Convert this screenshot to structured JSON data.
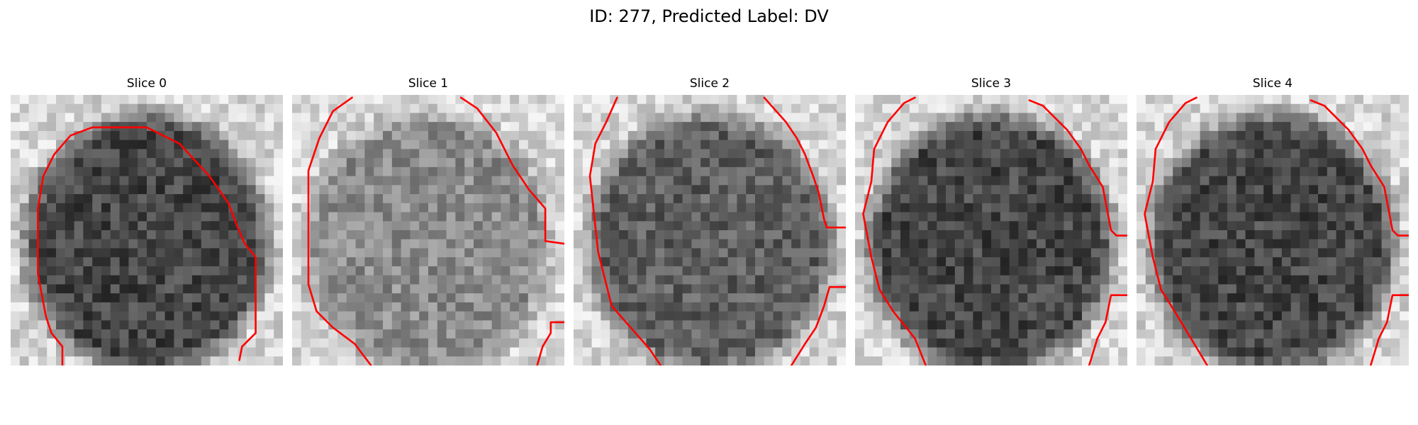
{
  "figure": {
    "title": "ID: 277, Predicted Label: DV"
  },
  "colors": {
    "contour": "#ff0000",
    "background": "#ffffff"
  },
  "slices": [
    {
      "title": "Slice 0",
      "lesion_brightness": "dark",
      "contour": [
        [
          [
            0.19,
            1.0
          ],
          [
            0.19,
            0.93
          ],
          [
            0.15,
            0.88
          ],
          [
            0.13,
            0.82
          ],
          [
            0.1,
            0.66
          ],
          [
            0.1,
            0.42
          ],
          [
            0.12,
            0.3
          ],
          [
            0.16,
            0.22
          ],
          [
            0.22,
            0.15
          ],
          [
            0.3,
            0.12
          ],
          [
            0.5,
            0.12
          ],
          [
            0.62,
            0.18
          ],
          [
            0.73,
            0.3
          ],
          [
            0.8,
            0.4
          ],
          [
            0.83,
            0.48
          ],
          [
            0.86,
            0.55
          ],
          [
            0.9,
            0.6
          ],
          [
            0.9,
            0.88
          ],
          [
            0.85,
            0.93
          ],
          [
            0.84,
            0.98
          ]
        ]
      ]
    },
    {
      "title": "Slice 1",
      "lesion_brightness": "light",
      "contour": [
        [
          [
            0.29,
            1.0
          ],
          [
            0.23,
            0.92
          ],
          [
            0.15,
            0.86
          ],
          [
            0.09,
            0.8
          ],
          [
            0.06,
            0.7
          ],
          [
            0.06,
            0.28
          ],
          [
            0.1,
            0.16
          ],
          [
            0.15,
            0.06
          ],
          [
            0.22,
            0.01
          ]
        ],
        [
          [
            0.62,
            0.01
          ],
          [
            0.68,
            0.05
          ],
          [
            0.75,
            0.14
          ],
          [
            0.81,
            0.26
          ],
          [
            0.87,
            0.35
          ],
          [
            0.93,
            0.42
          ],
          [
            0.93,
            0.54
          ],
          [
            1.0,
            0.55
          ]
        ],
        [
          [
            0.9,
            1.0
          ],
          [
            0.92,
            0.93
          ],
          [
            0.95,
            0.88
          ],
          [
            0.95,
            0.84
          ],
          [
            1.0,
            0.84
          ]
        ]
      ]
    },
    {
      "title": "Slice 2",
      "lesion_brightness": "mid",
      "contour": [
        [
          [
            0.32,
            1.0
          ],
          [
            0.28,
            0.94
          ],
          [
            0.21,
            0.86
          ],
          [
            0.14,
            0.78
          ],
          [
            0.09,
            0.58
          ],
          [
            0.06,
            0.3
          ],
          [
            0.08,
            0.18
          ],
          [
            0.12,
            0.1
          ],
          [
            0.16,
            0.01
          ]
        ],
        [
          [
            0.7,
            0.01
          ],
          [
            0.78,
            0.1
          ],
          [
            0.82,
            0.16
          ],
          [
            0.85,
            0.22
          ],
          [
            0.88,
            0.3
          ],
          [
            0.9,
            0.36
          ],
          [
            0.92,
            0.46
          ],
          [
            0.93,
            0.49
          ],
          [
            1.0,
            0.49
          ]
        ],
        [
          [
            0.8,
            1.0
          ],
          [
            0.85,
            0.92
          ],
          [
            0.89,
            0.86
          ],
          [
            0.92,
            0.78
          ],
          [
            0.94,
            0.71
          ],
          [
            1.0,
            0.71
          ]
        ]
      ]
    },
    {
      "title": "Slice 3",
      "lesion_brightness": "dark",
      "contour": [
        [
          [
            0.26,
            1.0
          ],
          [
            0.22,
            0.9
          ],
          [
            0.14,
            0.8
          ],
          [
            0.09,
            0.72
          ],
          [
            0.06,
            0.6
          ],
          [
            0.03,
            0.44
          ],
          [
            0.06,
            0.32
          ],
          [
            0.07,
            0.2
          ],
          [
            0.12,
            0.1
          ],
          [
            0.18,
            0.03
          ],
          [
            0.22,
            0.01
          ]
        ],
        [
          [
            0.64,
            0.02
          ],
          [
            0.69,
            0.04
          ],
          [
            0.78,
            0.13
          ],
          [
            0.83,
            0.2
          ],
          [
            0.86,
            0.26
          ],
          [
            0.91,
            0.34
          ],
          [
            0.94,
            0.5
          ],
          [
            0.96,
            0.52
          ],
          [
            1.0,
            0.52
          ]
        ],
        [
          [
            0.86,
            1.0
          ],
          [
            0.89,
            0.9
          ],
          [
            0.92,
            0.84
          ],
          [
            0.94,
            0.74
          ],
          [
            1.0,
            0.74
          ]
        ]
      ]
    },
    {
      "title": "Slice 4",
      "lesion_brightness": "dark",
      "contour": [
        [
          [
            0.26,
            1.0
          ],
          [
            0.2,
            0.9
          ],
          [
            0.14,
            0.8
          ],
          [
            0.09,
            0.72
          ],
          [
            0.06,
            0.6
          ],
          [
            0.03,
            0.44
          ],
          [
            0.06,
            0.32
          ],
          [
            0.07,
            0.2
          ],
          [
            0.12,
            0.1
          ],
          [
            0.18,
            0.03
          ],
          [
            0.22,
            0.01
          ]
        ],
        [
          [
            0.64,
            0.02
          ],
          [
            0.69,
            0.04
          ],
          [
            0.78,
            0.13
          ],
          [
            0.83,
            0.2
          ],
          [
            0.86,
            0.26
          ],
          [
            0.91,
            0.34
          ],
          [
            0.94,
            0.5
          ],
          [
            0.96,
            0.52
          ],
          [
            1.0,
            0.52
          ]
        ],
        [
          [
            0.86,
            1.0
          ],
          [
            0.89,
            0.9
          ],
          [
            0.92,
            0.84
          ],
          [
            0.94,
            0.74
          ],
          [
            1.0,
            0.74
          ]
        ]
      ]
    }
  ]
}
